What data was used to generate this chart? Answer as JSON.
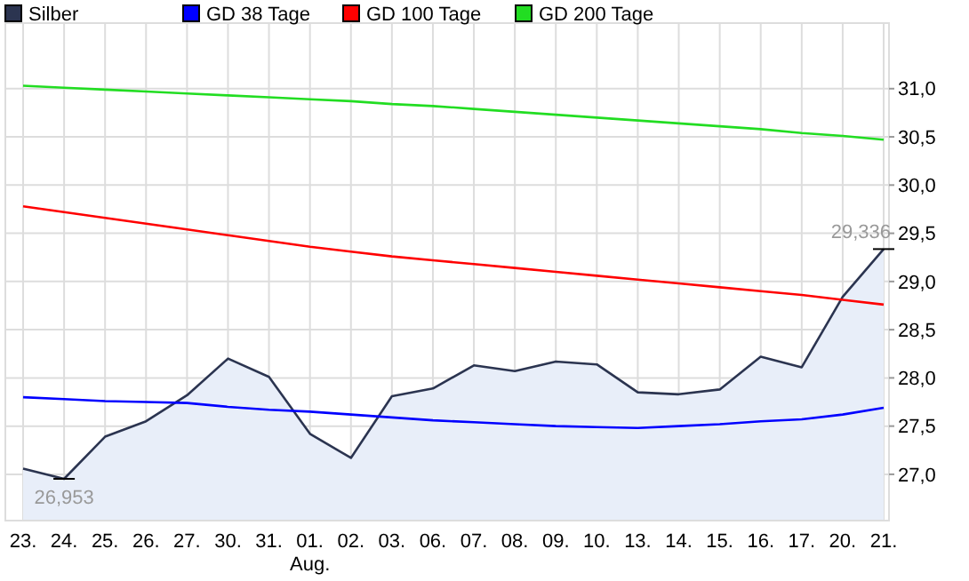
{
  "chart_data": {
    "type": "line",
    "categories": [
      "23.",
      "24.",
      "25.",
      "26.",
      "27.",
      "30.",
      "31.",
      "01.",
      "02.",
      "03.",
      "06.",
      "07.",
      "08.",
      "09.",
      "10.",
      "13.",
      "14.",
      "15.",
      "16.",
      "17.",
      "20.",
      "21."
    ],
    "series": [
      {
        "name": "Silber",
        "type": "area",
        "color": "#2b3450",
        "values": [
          27.06,
          26.953,
          27.39,
          27.55,
          27.82,
          28.2,
          28.01,
          27.42,
          27.17,
          27.81,
          27.89,
          28.13,
          28.07,
          28.17,
          28.14,
          27.85,
          27.83,
          27.88,
          28.22,
          28.11,
          28.84,
          29.336
        ]
      },
      {
        "name": "GD 38 Tage",
        "color": "#0000ff",
        "values": [
          27.8,
          27.78,
          27.76,
          27.75,
          27.74,
          27.7,
          27.67,
          27.65,
          27.62,
          27.59,
          27.56,
          27.54,
          27.52,
          27.5,
          27.49,
          27.48,
          27.5,
          27.52,
          27.55,
          27.57,
          27.62,
          27.69
        ]
      },
      {
        "name": "GD 100 Tage",
        "color": "#ff0000",
        "values": [
          29.78,
          29.72,
          29.66,
          29.6,
          29.54,
          29.48,
          29.42,
          29.36,
          29.31,
          29.26,
          29.22,
          29.18,
          29.14,
          29.1,
          29.06,
          29.02,
          28.98,
          28.94,
          28.9,
          28.86,
          28.81,
          28.76
        ]
      },
      {
        "name": "GD 200 Tage",
        "color": "#22dd22",
        "values": [
          31.03,
          31.01,
          30.99,
          30.97,
          30.95,
          30.93,
          30.91,
          30.89,
          30.87,
          30.84,
          30.82,
          30.79,
          30.76,
          30.73,
          30.7,
          30.67,
          30.64,
          30.61,
          30.58,
          30.54,
          30.51,
          30.47
        ]
      }
    ],
    "ylim": [
      26.52,
      31.68
    ],
    "yticks": [
      {
        "value": 27,
        "label": "27,0"
      },
      {
        "value": 27.5,
        "label": "27,5"
      },
      {
        "value": 28,
        "label": "28,0"
      },
      {
        "value": 28.5,
        "label": "28,5"
      },
      {
        "value": 29,
        "label": "29,0"
      },
      {
        "value": 29.5,
        "label": "29,5"
      },
      {
        "value": 30,
        "label": "30,0"
      },
      {
        "value": 30.5,
        "label": "30,5"
      },
      {
        "value": 31,
        "label": "31,0"
      }
    ],
    "annotations": [
      {
        "text": "26,953",
        "x": "24.",
        "y": 26.953
      },
      {
        "text": "29,336",
        "x": "21.",
        "y": 29.336
      },
      "Aug."
    ],
    "grid": true,
    "legend": "top left",
    "marker": "none",
    "line_style": "solid"
  }
}
